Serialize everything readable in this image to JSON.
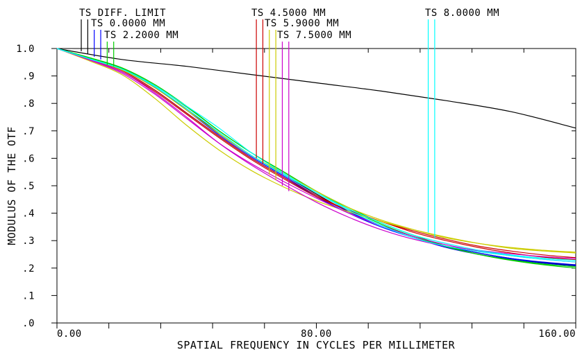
{
  "chart_data": {
    "type": "line",
    "xlabel": "SPATIAL FREQUENCY IN CYCLES PER MILLIMETER",
    "ylabel": "MODULUS OF THE OTF",
    "xlim": [
      0,
      160
    ],
    "ylim": [
      0,
      1.0
    ],
    "x_tick_labels": [
      {
        "value": 0,
        "text": "0.00"
      },
      {
        "value": 80,
        "text": "80.00"
      },
      {
        "value": 160,
        "text": "160.00"
      }
    ],
    "x_minor_ticks": [
      16,
      32,
      48,
      64,
      96,
      112,
      128,
      144
    ],
    "y_tick_labels": [
      {
        "value": 1.0,
        "text": "1.0"
      },
      {
        "value": 0.9,
        "text": ".9"
      },
      {
        "value": 0.8,
        "text": ".8"
      },
      {
        "value": 0.7,
        "text": ".7"
      },
      {
        "value": 0.6,
        "text": ".6"
      },
      {
        "value": 0.5,
        "text": ".5"
      },
      {
        "value": 0.4,
        "text": ".4"
      },
      {
        "value": 0.3,
        "text": ".3"
      },
      {
        "value": 0.2,
        "text": ".2"
      },
      {
        "value": 0.1,
        "text": ".1"
      },
      {
        "value": 0.0,
        "text": ".0"
      }
    ],
    "grid": false,
    "legend": [
      {
        "text": "TS DIFF. LIMIT",
        "colors": [
          "#000000",
          "#000000"
        ],
        "marker_x": [
          7.5,
          9.5
        ],
        "marker_top": 1.1,
        "marker_end": [
          0.99,
          0.98
        ]
      },
      {
        "text": "TS 0.0000 MM",
        "colors": [
          "#0000ff",
          "#0000ff"
        ],
        "marker_x": [
          11.5,
          13.5
        ],
        "marker_top": 1.06,
        "marker_end": [
          0.97,
          0.96
        ]
      },
      {
        "text": "TS 2.2000 MM",
        "colors": [
          "#00cc00",
          "#00cc00"
        ],
        "marker_x": [
          15.5,
          17.5
        ],
        "marker_top": 1.02,
        "marker_end": [
          0.94,
          0.935
        ]
      },
      {
        "text": "TS 4.5000 MM",
        "colors": [
          "#cc0000",
          "#cc0000"
        ],
        "marker_x": [
          61.5,
          63.5
        ],
        "marker_top": 1.1,
        "marker_end": [
          0.6,
          0.58
        ]
      },
      {
        "text": "TS 5.9000 MM",
        "colors": [
          "#cccc00",
          "#cccc00"
        ],
        "marker_x": [
          65.5,
          67.5
        ],
        "marker_top": 1.06,
        "marker_end": [
          0.54,
          0.52
        ]
      },
      {
        "text": "TS 7.5000 MM",
        "colors": [
          "#cc00cc",
          "#cc00cc"
        ],
        "marker_x": [
          69.5,
          71.5
        ],
        "marker_top": 1.02,
        "marker_end": [
          0.5,
          0.48
        ]
      },
      {
        "text": "TS 8.0000 MM",
        "colors": [
          "#00ffff",
          "#00ffff"
        ],
        "marker_x": [
          114.5,
          116.5
        ],
        "marker_top": 1.1,
        "marker_end": [
          0.33,
          0.31
        ]
      }
    ],
    "series": [
      {
        "name": "TS DIFF. LIMIT",
        "color": "#000000",
        "x": [
          0,
          20,
          40,
          60,
          80,
          100,
          120,
          140,
          160
        ],
        "y": [
          1.0,
          0.96,
          0.935,
          0.905,
          0.875,
          0.845,
          0.81,
          0.77,
          0.71
        ]
      },
      {
        "color": "#000000",
        "x": [
          0,
          10,
          20,
          30,
          40,
          50,
          60,
          70,
          80,
          90,
          100,
          110,
          120,
          130,
          140,
          150,
          160
        ],
        "y": [
          1.0,
          0.965,
          0.925,
          0.86,
          0.78,
          0.69,
          0.61,
          0.54,
          0.47,
          0.405,
          0.355,
          0.315,
          0.28,
          0.255,
          0.235,
          0.22,
          0.21
        ]
      },
      {
        "name": "TS 0.0000 MM",
        "color": "#0000ff",
        "x": [
          0,
          10,
          20,
          30,
          40,
          50,
          60,
          70,
          80,
          90,
          100,
          110,
          120,
          130,
          140,
          150,
          160
        ],
        "y": [
          1.0,
          0.965,
          0.925,
          0.86,
          0.775,
          0.685,
          0.605,
          0.535,
          0.465,
          0.405,
          0.355,
          0.315,
          0.28,
          0.255,
          0.235,
          0.222,
          0.212
        ]
      },
      {
        "color": "#0000ff",
        "x": [
          0,
          10,
          20,
          30,
          40,
          50,
          60,
          70,
          80,
          90,
          100,
          110,
          120,
          130,
          140,
          150,
          160
        ],
        "y": [
          1.0,
          0.962,
          0.92,
          0.85,
          0.765,
          0.68,
          0.6,
          0.53,
          0.46,
          0.4,
          0.35,
          0.31,
          0.275,
          0.25,
          0.232,
          0.218,
          0.208
        ]
      },
      {
        "name": "TS 2.2000 MM",
        "color": "#00cc00",
        "x": [
          0,
          10,
          20,
          30,
          40,
          50,
          60,
          70,
          80,
          90,
          100,
          110,
          120,
          130,
          140,
          150,
          160
        ],
        "y": [
          1.0,
          0.967,
          0.93,
          0.87,
          0.79,
          0.7,
          0.62,
          0.55,
          0.48,
          0.42,
          0.365,
          0.32,
          0.28,
          0.25,
          0.228,
          0.212,
          0.2
        ]
      },
      {
        "color": "#00cc00",
        "x": [
          0,
          10,
          20,
          30,
          40,
          50,
          60,
          70,
          80,
          90,
          100,
          110,
          120,
          130,
          140,
          150,
          160
        ],
        "y": [
          1.0,
          0.965,
          0.927,
          0.866,
          0.787,
          0.7,
          0.62,
          0.55,
          0.48,
          0.415,
          0.36,
          0.315,
          0.278,
          0.25,
          0.23,
          0.215,
          0.205
        ]
      },
      {
        "name": "TS 4.5000 MM",
        "color": "#cc0000",
        "x": [
          0,
          10,
          20,
          30,
          40,
          50,
          60,
          70,
          80,
          90,
          100,
          110,
          120,
          130,
          140,
          150,
          160
        ],
        "y": [
          1.0,
          0.962,
          0.92,
          0.85,
          0.765,
          0.68,
          0.6,
          0.53,
          0.465,
          0.41,
          0.37,
          0.33,
          0.3,
          0.275,
          0.255,
          0.24,
          0.23
        ]
      },
      {
        "color": "#cc0000",
        "x": [
          0,
          10,
          20,
          30,
          40,
          50,
          60,
          70,
          80,
          90,
          100,
          110,
          120,
          130,
          140,
          150,
          160
        ],
        "y": [
          1.0,
          0.96,
          0.915,
          0.845,
          0.76,
          0.675,
          0.595,
          0.525,
          0.46,
          0.41,
          0.37,
          0.335,
          0.305,
          0.28,
          0.262,
          0.248,
          0.238
        ]
      },
      {
        "name": "TS 5.9000 MM",
        "color": "#cccc00",
        "x": [
          0,
          10,
          20,
          30,
          40,
          50,
          60,
          70,
          80,
          90,
          100,
          110,
          120,
          130,
          140,
          150,
          160
        ],
        "y": [
          1.0,
          0.955,
          0.905,
          0.82,
          0.72,
          0.63,
          0.555,
          0.495,
          0.445,
          0.405,
          0.37,
          0.34,
          0.313,
          0.29,
          0.272,
          0.262,
          0.255
        ]
      },
      {
        "color": "#cccc00",
        "x": [
          0,
          10,
          20,
          30,
          40,
          50,
          60,
          70,
          80,
          90,
          100,
          110,
          120,
          130,
          140,
          150,
          160
        ],
        "y": [
          1.0,
          0.962,
          0.922,
          0.858,
          0.775,
          0.69,
          0.61,
          0.545,
          0.48,
          0.42,
          0.375,
          0.34,
          0.31,
          0.29,
          0.275,
          0.265,
          0.258
        ]
      },
      {
        "name": "TS 7.5000 MM",
        "color": "#cc00cc",
        "x": [
          0,
          10,
          20,
          30,
          40,
          50,
          60,
          70,
          80,
          90,
          100,
          110,
          120,
          130,
          140,
          150,
          160
        ],
        "y": [
          1.0,
          0.96,
          0.915,
          0.84,
          0.75,
          0.655,
          0.575,
          0.505,
          0.44,
          0.385,
          0.34,
          0.305,
          0.28,
          0.265,
          0.252,
          0.242,
          0.235
        ]
      },
      {
        "color": "#cc00cc",
        "x": [
          0,
          10,
          20,
          30,
          40,
          50,
          60,
          70,
          80,
          90,
          100,
          110,
          120,
          130,
          140,
          150,
          160
        ],
        "y": [
          1.0,
          0.958,
          0.91,
          0.835,
          0.745,
          0.655,
          0.58,
          0.515,
          0.455,
          0.4,
          0.355,
          0.315,
          0.285,
          0.262,
          0.245,
          0.232,
          0.222
        ]
      },
      {
        "name": "TS 8.0000 MM",
        "color": "#00ffff",
        "x": [
          0,
          10,
          20,
          30,
          40,
          50,
          60,
          70,
          80,
          90,
          100,
          110,
          120,
          130,
          140,
          150,
          160
        ],
        "y": [
          1.0,
          0.962,
          0.925,
          0.865,
          0.79,
          0.71,
          0.62,
          0.545,
          0.475,
          0.41,
          0.355,
          0.31,
          0.28,
          0.26,
          0.245,
          0.232,
          0.222
        ]
      },
      {
        "color": "#00ffff",
        "x": [
          0,
          10,
          20,
          30,
          40,
          50,
          60,
          70,
          80,
          90,
          100,
          110,
          120,
          130,
          140,
          150,
          160
        ],
        "y": [
          1.0,
          0.963,
          0.925,
          0.862,
          0.78,
          0.695,
          0.61,
          0.54,
          0.475,
          0.415,
          0.365,
          0.32,
          0.29,
          0.265,
          0.248,
          0.236,
          0.228
        ]
      }
    ]
  }
}
